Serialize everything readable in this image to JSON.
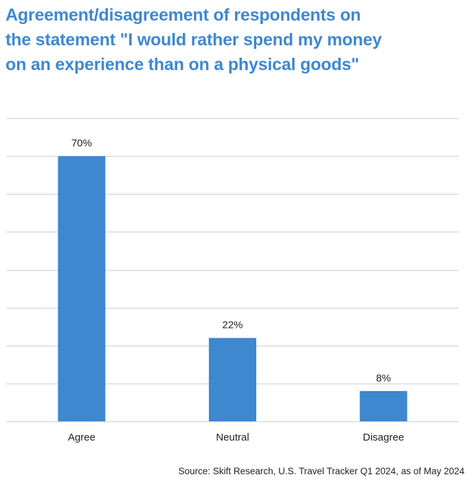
{
  "colors": {
    "title": "#3E88D0",
    "bar": "#3E88D0",
    "gridline": "#D9D9D9",
    "text": "#222222"
  },
  "chart_data": {
    "type": "bar",
    "title": "Agreement/disagreement of respondents on the statement \"I would rather spend my money on an experience than on a physical goods\"",
    "categories": [
      "Agree",
      "Neutral",
      "Disagree"
    ],
    "values": [
      70,
      22,
      8
    ],
    "data_labels": [
      "70%",
      "22%",
      "8%"
    ],
    "unit": "%",
    "ylim": [
      0,
      80
    ],
    "y_gridline_step": 10,
    "grid": true,
    "y_axis_labels_shown": false,
    "legend": "none",
    "source": "Source: Skift Research, U.S. Travel Tracker Q1 2024, as of May 2024"
  }
}
